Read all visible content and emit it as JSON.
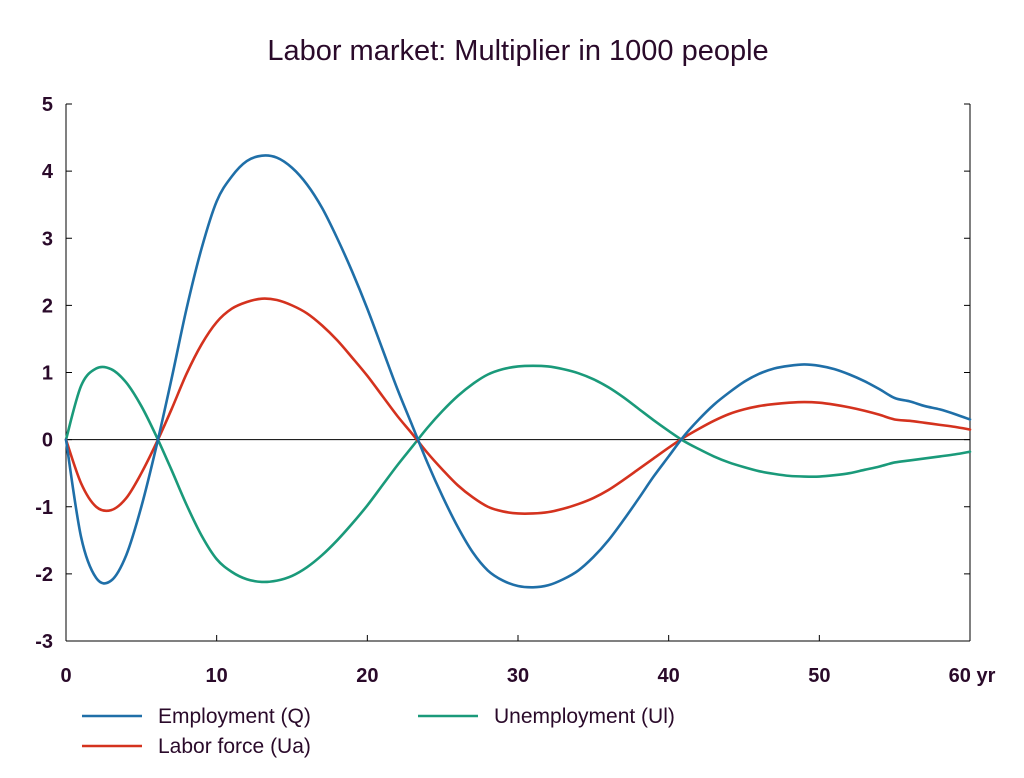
{
  "chart_data": {
    "type": "line",
    "title": "Labor market: Multiplier in 1000 people",
    "xlabel": "",
    "ylabel": "",
    "xlim": [
      0,
      60
    ],
    "ylim": [
      -3,
      5
    ],
    "x_ticks": [
      0,
      10,
      20,
      30,
      40,
      50,
      60
    ],
    "x_tick_labels": [
      "0",
      "10",
      "20",
      "30",
      "40",
      "50",
      "60 yr"
    ],
    "y_ticks": [
      5,
      4,
      3,
      2,
      1,
      0,
      -1,
      -2,
      -3
    ],
    "y_tick_labels": [
      "5",
      "4",
      "3",
      "2",
      "1",
      "0",
      "-1",
      "-2",
      "-3"
    ],
    "x": [
      0,
      1,
      2,
      3,
      4,
      5,
      6,
      7,
      8,
      9,
      10,
      11,
      12,
      13,
      14,
      15,
      16,
      17,
      18,
      19,
      20,
      21,
      22,
      23,
      24,
      25,
      26,
      27,
      28,
      29,
      30,
      31,
      32,
      33,
      34,
      35,
      36,
      37,
      38,
      39,
      40,
      41,
      42,
      43,
      44,
      45,
      46,
      47,
      48,
      49,
      50,
      51,
      52,
      53,
      54,
      55,
      56,
      57,
      58,
      59,
      60
    ],
    "series": [
      {
        "name": "Employment (Q)",
        "color": "#1f6fa8",
        "values": [
          0,
          -1.45,
          -2.06,
          -2.1,
          -1.72,
          -1.0,
          -0.1,
          0.9,
          1.95,
          2.85,
          3.55,
          3.92,
          4.15,
          4.23,
          4.2,
          4.05,
          3.8,
          3.45,
          3.0,
          2.5,
          1.95,
          1.35,
          0.75,
          0.2,
          -0.35,
          -0.85,
          -1.3,
          -1.68,
          -1.95,
          -2.1,
          -2.18,
          -2.2,
          -2.17,
          -2.08,
          -1.95,
          -1.75,
          -1.5,
          -1.2,
          -0.88,
          -0.55,
          -0.25,
          0.05,
          0.3,
          0.52,
          0.7,
          0.86,
          0.98,
          1.06,
          1.1,
          1.12,
          1.1,
          1.05,
          0.97,
          0.87,
          0.75,
          0.62,
          0.57,
          0.5,
          0.45,
          0.38,
          0.3
        ]
      },
      {
        "name": "Labor force (Ua)",
        "color": "#d4321e",
        "values": [
          0,
          -0.65,
          -1.0,
          -1.05,
          -0.87,
          -0.5,
          -0.05,
          0.45,
          0.98,
          1.42,
          1.75,
          1.95,
          2.05,
          2.1,
          2.08,
          2.0,
          1.88,
          1.7,
          1.48,
          1.22,
          0.95,
          0.65,
          0.35,
          0.08,
          -0.2,
          -0.45,
          -0.68,
          -0.86,
          -1.0,
          -1.07,
          -1.1,
          -1.1,
          -1.08,
          -1.03,
          -0.96,
          -0.87,
          -0.75,
          -0.6,
          -0.44,
          -0.28,
          -0.12,
          0.03,
          0.16,
          0.28,
          0.38,
          0.45,
          0.5,
          0.53,
          0.55,
          0.56,
          0.55,
          0.52,
          0.48,
          0.43,
          0.37,
          0.3,
          0.28,
          0.25,
          0.22,
          0.19,
          0.15
        ]
      },
      {
        "name": "Unemployment (Ul)",
        "color": "#1a9a7a",
        "values": [
          0,
          0.8,
          1.06,
          1.05,
          0.85,
          0.5,
          0.05,
          -0.45,
          -0.97,
          -1.43,
          -1.78,
          -1.97,
          -2.08,
          -2.12,
          -2.1,
          -2.03,
          -1.9,
          -1.72,
          -1.5,
          -1.25,
          -0.98,
          -0.68,
          -0.38,
          -0.1,
          0.18,
          0.43,
          0.65,
          0.83,
          0.97,
          1.05,
          1.09,
          1.1,
          1.09,
          1.05,
          0.99,
          0.9,
          0.78,
          0.63,
          0.46,
          0.29,
          0.13,
          -0.02,
          -0.14,
          -0.25,
          -0.34,
          -0.41,
          -0.47,
          -0.51,
          -0.54,
          -0.55,
          -0.55,
          -0.53,
          -0.5,
          -0.45,
          -0.4,
          -0.34,
          -0.31,
          -0.28,
          -0.25,
          -0.22,
          -0.18
        ]
      }
    ],
    "legend": {
      "placement": "bottom",
      "entries": [
        "Employment (Q)",
        "Unemployment (Ul)",
        "Labor force (Ua)"
      ]
    }
  }
}
